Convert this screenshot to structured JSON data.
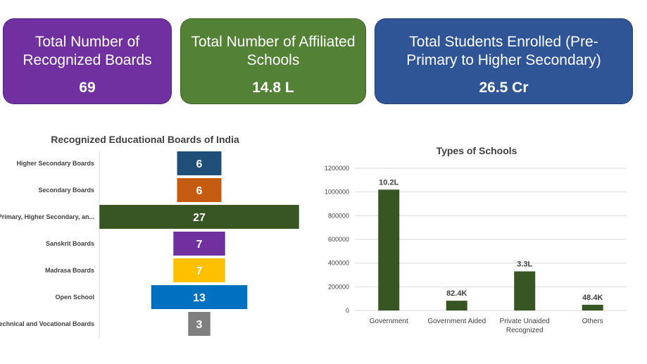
{
  "cards": [
    {
      "label": "Total Number of Recognized Boards",
      "value": "69",
      "color": "#7030a0"
    },
    {
      "label": "Total Number of Affiliated Schools",
      "value": "14.8 L",
      "color": "#538135"
    },
    {
      "label": "Total Students Enrolled (Pre-Primary to Higher Secondary)",
      "value": "26.5 Cr",
      "color": "#2f5597"
    }
  ],
  "chart_data": [
    {
      "type": "bar",
      "orientation": "horizontal-centered",
      "title": "Recognized Educational Boards of India",
      "categories": [
        "Higher Secondary Boards",
        "Secondary Boards",
        "Primary, Higher Secondary, an...",
        "Sanskrit Boards",
        "Madrasa Boards",
        "Open School",
        "Technical and Vocational Boards"
      ],
      "values": [
        6,
        6,
        27,
        7,
        7,
        13,
        3
      ],
      "colors": [
        "#1f4e79",
        "#c55a11",
        "#375623",
        "#7030a0",
        "#ffc000",
        "#0070c0",
        "#7f7f7f"
      ]
    },
    {
      "type": "bar",
      "title": "Types of Schools",
      "categories": [
        "Government",
        "Government Aided",
        "Private Unaided Recognized",
        "Others"
      ],
      "values": [
        1020000,
        82400,
        330000,
        48400
      ],
      "data_labels": [
        "10.2L",
        "82.4K",
        "3.3L",
        "48.4K"
      ],
      "yticks": [
        "0",
        "200000",
        "400000",
        "600000",
        "800000",
        "1000000",
        "1200000"
      ],
      "ylim": [
        0,
        1200000
      ],
      "grid": true,
      "color": "#375623"
    }
  ]
}
